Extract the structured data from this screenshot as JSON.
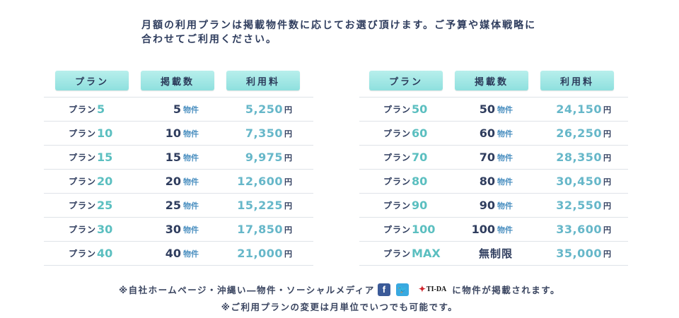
{
  "intro": {
    "line1": "月額の利用プランは掲載物件数に応じてお選び頂けます。ご予算や媒体戦略に",
    "line2": "合わせてご利用ください。"
  },
  "headers": {
    "plan": "プラン",
    "count": "掲載数",
    "fee": "利用料"
  },
  "labels": {
    "plan_prefix": "プラン",
    "unit_count": "物件",
    "unit_yen": "円"
  },
  "left_rows": [
    {
      "plan": "5",
      "count": "5",
      "price": "5,250"
    },
    {
      "plan": "10",
      "count": "10",
      "price": "7,350"
    },
    {
      "plan": "15",
      "count": "15",
      "price": "9,975"
    },
    {
      "plan": "20",
      "count": "20",
      "price": "12,600"
    },
    {
      "plan": "25",
      "count": "25",
      "price": "15,225"
    },
    {
      "plan": "30",
      "count": "30",
      "price": "17,850"
    },
    {
      "plan": "40",
      "count": "40",
      "price": "21,000"
    }
  ],
  "right_rows": [
    {
      "plan": "50",
      "count": "50",
      "price": "24,150"
    },
    {
      "plan": "60",
      "count": "60",
      "price": "26,250"
    },
    {
      "plan": "70",
      "count": "70",
      "price": "28,350"
    },
    {
      "plan": "80",
      "count": "80",
      "price": "30,450"
    },
    {
      "plan": "90",
      "count": "90",
      "price": "32,550"
    },
    {
      "plan": "100",
      "count": "100",
      "price": "33,600"
    },
    {
      "plan": "MAX",
      "count_text": "無制限",
      "price": "35,000"
    }
  ],
  "notes": {
    "line1_before": "※自社ホームページ・沖縄い―物件・ソーシャルメディア",
    "facebook_icon": "facebook-icon",
    "twitter_icon": "twitter-icon",
    "tida_logo": "TI-DA",
    "line1_after": "に物件が掲載されます。",
    "line2": "※ご利用プランの変更は月単位でいつでも可能です。"
  }
}
